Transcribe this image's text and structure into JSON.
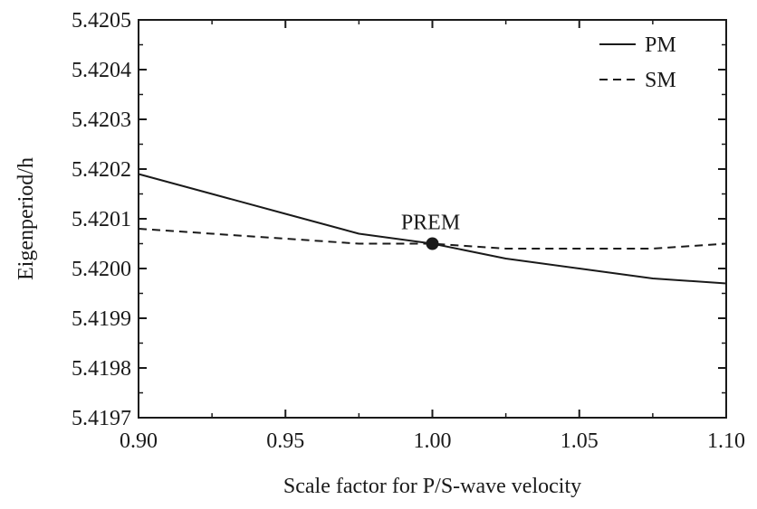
{
  "chart_data": {
    "type": "line",
    "title": "",
    "xlabel": "Scale factor for P/S-wave velocity",
    "ylabel": "Eigenperiod/h",
    "xlim": [
      0.9,
      1.1
    ],
    "ylim": [
      5.4197,
      5.4205
    ],
    "x_ticks": [
      "0.90",
      "0.95",
      "1.00",
      "1.05",
      "1.10"
    ],
    "y_ticks": [
      "5.4197",
      "5.4198",
      "5.4199",
      "5.4200",
      "5.4201",
      "5.4202",
      "5.4203",
      "5.4204",
      "5.4205"
    ],
    "legend_position": "top-right",
    "series": [
      {
        "name": "PM",
        "style": "solid",
        "color": "#1a1a1a",
        "x": [
          0.9,
          0.925,
          0.95,
          0.975,
          1.0,
          1.025,
          1.05,
          1.075,
          1.1
        ],
        "y": [
          5.42019,
          5.42015,
          5.42011,
          5.42007,
          5.42005,
          5.42002,
          5.42,
          5.41998,
          5.41997
        ]
      },
      {
        "name": "SM",
        "style": "dashed",
        "color": "#1a1a1a",
        "x": [
          0.9,
          0.925,
          0.95,
          0.975,
          1.0,
          1.025,
          1.05,
          1.075,
          1.1
        ],
        "y": [
          5.42008,
          5.42007,
          5.42006,
          5.42005,
          5.42005,
          5.42004,
          5.42004,
          5.42004,
          5.42005
        ]
      }
    ],
    "annotations": [
      {
        "label": "PREM",
        "x": 1.0,
        "y": 5.42005,
        "marker": "filled-circle"
      }
    ]
  }
}
